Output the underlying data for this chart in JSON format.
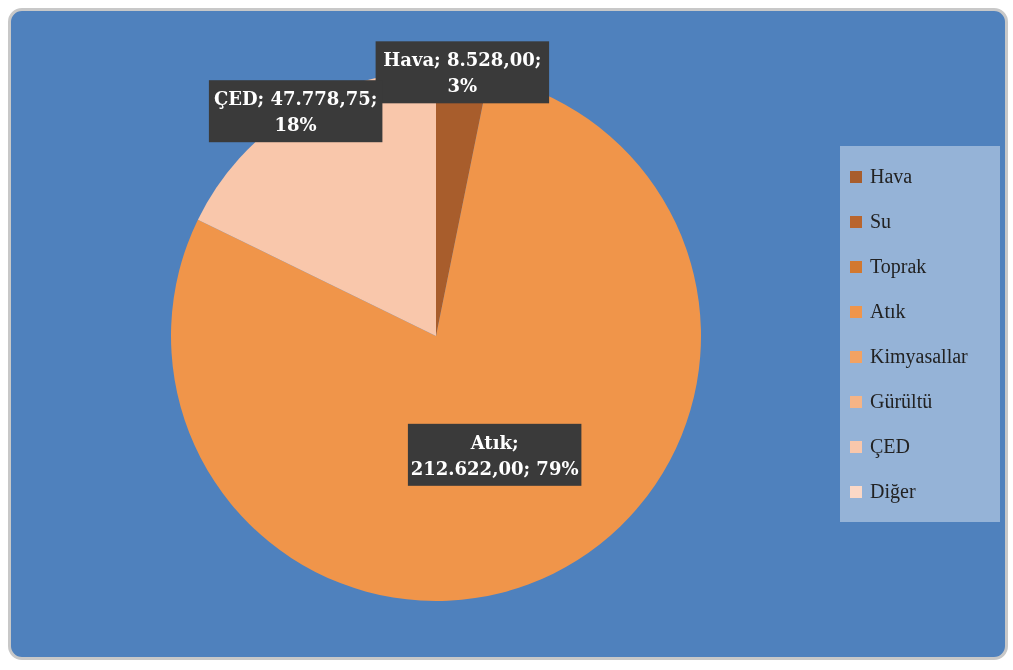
{
  "chart_data": {
    "type": "pie",
    "categories": [
      "Hava",
      "Su",
      "Toprak",
      "Atık",
      "Kimyasallar",
      "Gürültü",
      "ÇED",
      "Diğer"
    ],
    "values": [
      8528,
      0,
      0,
      212622,
      0,
      0,
      47778.75,
      0
    ],
    "colors": [
      "#a85d2c",
      "#b9652d",
      "#d2782f",
      "#f0954a",
      "#f3a262",
      "#f5b486",
      "#f9c7ab",
      "#fbd8c6"
    ],
    "value_labels": [
      "Hava; 8.528,00; 3%",
      null,
      null,
      "Atık; 212.622,00; 79%",
      null,
      null,
      "ÇED; 47.778,75; 18%",
      null
    ],
    "legend": "right"
  }
}
